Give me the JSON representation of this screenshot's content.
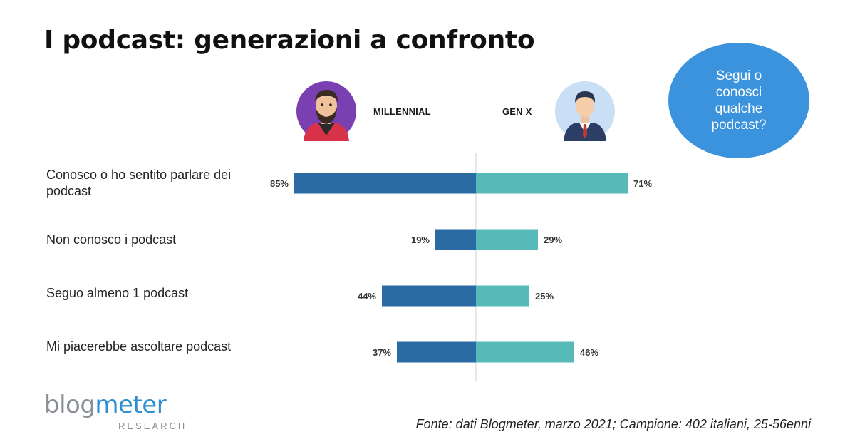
{
  "title": "I podcast: generazioni a confronto",
  "bubble_text": "Segui o conosci qualche podcast?",
  "colors": {
    "millennial": "#2a6ba3",
    "genx": "#58b9b9",
    "bubble": "#3a93dc"
  },
  "avatars": {
    "millennial_icon": "bearded-man-avatar-icon",
    "genx_icon": "businessman-avatar-icon"
  },
  "chart_data": {
    "type": "bar",
    "orientation": "horizontal-butterfly",
    "categories": [
      "Conosco o ho sentito parlare dei podcast",
      "Non conosco i podcast",
      "Seguo almeno 1 podcast",
      "Mi piacerebbe ascoltare podcast"
    ],
    "series": [
      {
        "name": "MILLENNIAL",
        "values": [
          85,
          19,
          44,
          37
        ],
        "labels": [
          "85%",
          "19%",
          "44%",
          "37%"
        ]
      },
      {
        "name": "GEN X",
        "values": [
          71,
          29,
          25,
          46
        ],
        "labels": [
          "71%",
          "29%",
          "25%",
          "46%"
        ]
      }
    ],
    "unit": "%",
    "grid": false,
    "legend": "top"
  },
  "footer": "Fonte: dati Blogmeter, marzo 2021; Campione: 402 italiani, 25-56enni",
  "logo": {
    "word_left": "blog",
    "word_right": "meter",
    "sub": "RESEARCH"
  }
}
